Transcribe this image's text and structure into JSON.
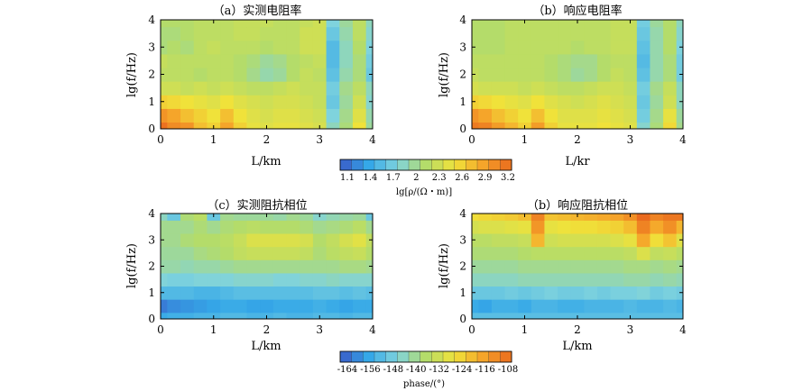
{
  "chart_data": [
    {
      "type": "heatmap",
      "title": "（a）实测电阻率",
      "xlabel": "L/km",
      "ylabel": "lg(f/Hz)",
      "xlim": [
        0,
        4
      ],
      "ylim": [
        0,
        4
      ],
      "xticks": [
        "0",
        "1",
        "2",
        "3",
        "4"
      ],
      "yticks": [
        "0",
        "1",
        "2",
        "3",
        "4"
      ],
      "colorbar_group": "resistivity",
      "rows_lgf": [
        0,
        0.5,
        1,
        1.5,
        2,
        2.5,
        3,
        3.5,
        4
      ],
      "cols_km": [
        0,
        0.25,
        0.5,
        0.75,
        1,
        1.25,
        1.5,
        1.75,
        2,
        2.25,
        2.5,
        2.75,
        3,
        3.25,
        3.5,
        3.75,
        4
      ],
      "values": [
        [
          3.15,
          3.0,
          2.95,
          2.7,
          2.6,
          2.85,
          2.6,
          2.45,
          2.4,
          2.45,
          2.45,
          2.4,
          2.35,
          1.9,
          2.1,
          2.5,
          2.0
        ],
        [
          2.95,
          2.85,
          2.7,
          2.6,
          2.5,
          2.7,
          2.5,
          2.4,
          2.35,
          2.4,
          2.4,
          2.35,
          2.3,
          1.8,
          2.05,
          2.4,
          1.95
        ],
        [
          2.6,
          2.55,
          2.5,
          2.45,
          2.4,
          2.5,
          2.4,
          2.35,
          2.3,
          2.35,
          2.35,
          2.3,
          2.25,
          1.7,
          2.0,
          2.3,
          1.85
        ],
        [
          2.3,
          2.3,
          2.25,
          2.3,
          2.25,
          2.3,
          2.25,
          2.2,
          2.2,
          2.25,
          2.3,
          2.25,
          2.25,
          1.75,
          2.05,
          2.2,
          1.9
        ],
        [
          2.2,
          2.2,
          2.2,
          2.15,
          2.2,
          2.2,
          2.15,
          2.05,
          1.95,
          2.0,
          2.15,
          2.25,
          2.2,
          1.65,
          1.95,
          2.1,
          1.7
        ],
        [
          2.25,
          2.2,
          2.2,
          2.2,
          2.2,
          2.2,
          2.15,
          2.1,
          2.0,
          2.05,
          2.15,
          2.2,
          2.25,
          1.6,
          1.9,
          2.1,
          1.75
        ],
        [
          2.1,
          2.15,
          2.1,
          2.2,
          2.25,
          2.2,
          2.2,
          2.2,
          2.15,
          2.2,
          2.2,
          2.3,
          2.3,
          1.6,
          1.9,
          2.15,
          1.8
        ],
        [
          2.1,
          2.1,
          2.15,
          2.2,
          2.2,
          2.2,
          2.25,
          2.25,
          2.2,
          2.2,
          2.2,
          2.3,
          2.3,
          1.7,
          1.95,
          2.2,
          1.85
        ],
        [
          2.15,
          2.15,
          2.15,
          2.2,
          2.2,
          2.2,
          2.25,
          2.25,
          2.25,
          2.2,
          2.2,
          2.25,
          2.3,
          1.8,
          2.0,
          2.2,
          1.9
        ]
      ]
    },
    {
      "type": "heatmap",
      "title": "（b）响应电阻率",
      "xlabel": "L/kr",
      "ylabel": "lg(f/Hz)",
      "xlim": [
        0,
        4
      ],
      "ylim": [
        0,
        4
      ],
      "xticks": [
        "0",
        "1",
        "2",
        "3",
        "4"
      ],
      "yticks": [
        "0",
        "1",
        "2",
        "3",
        "4"
      ],
      "colorbar_group": "resistivity",
      "rows_lgf": [
        0,
        0.5,
        1,
        1.5,
        2,
        2.5,
        3,
        3.5,
        4
      ],
      "cols_km": [
        0,
        0.25,
        0.5,
        0.75,
        1,
        1.25,
        1.5,
        1.75,
        2,
        2.25,
        2.5,
        2.75,
        3,
        3.25,
        3.5,
        3.75,
        4
      ],
      "values": [
        [
          3.1,
          3.05,
          2.9,
          2.75,
          2.6,
          2.9,
          2.6,
          2.45,
          2.45,
          2.45,
          2.5,
          2.45,
          2.4,
          1.85,
          2.1,
          2.55,
          2.05
        ],
        [
          2.95,
          2.85,
          2.7,
          2.6,
          2.5,
          2.7,
          2.5,
          2.4,
          2.4,
          2.4,
          2.45,
          2.4,
          2.35,
          1.75,
          2.05,
          2.45,
          2.0
        ],
        [
          2.6,
          2.55,
          2.5,
          2.45,
          2.4,
          2.5,
          2.4,
          2.35,
          2.3,
          2.35,
          2.4,
          2.35,
          2.3,
          1.7,
          2.0,
          2.3,
          1.9
        ],
        [
          2.35,
          2.3,
          2.3,
          2.3,
          2.25,
          2.3,
          2.25,
          2.2,
          2.2,
          2.25,
          2.3,
          2.3,
          2.25,
          1.75,
          2.05,
          2.25,
          1.9
        ],
        [
          2.25,
          2.2,
          2.2,
          2.2,
          2.2,
          2.2,
          2.15,
          2.1,
          2.0,
          2.05,
          2.15,
          2.25,
          2.2,
          1.65,
          1.95,
          2.1,
          1.75
        ],
        [
          2.2,
          2.2,
          2.2,
          2.2,
          2.2,
          2.2,
          2.15,
          2.1,
          2.05,
          2.05,
          2.15,
          2.2,
          2.2,
          1.6,
          1.95,
          2.1,
          1.75
        ],
        [
          2.15,
          2.15,
          2.15,
          2.2,
          2.2,
          2.2,
          2.2,
          2.2,
          2.15,
          2.2,
          2.2,
          2.25,
          2.25,
          1.65,
          1.95,
          2.15,
          1.8
        ],
        [
          2.15,
          2.15,
          2.15,
          2.2,
          2.2,
          2.2,
          2.2,
          2.2,
          2.2,
          2.2,
          2.2,
          2.25,
          2.25,
          1.7,
          1.95,
          2.15,
          1.85
        ],
        [
          2.15,
          2.15,
          2.15,
          2.2,
          2.2,
          2.2,
          2.2,
          2.2,
          2.2,
          2.2,
          2.2,
          2.25,
          2.25,
          1.75,
          2.0,
          2.15,
          1.9
        ]
      ]
    },
    {
      "type": "heatmap",
      "title": "（c）实测阻抗相位",
      "xlabel": "L/km",
      "ylabel": "lg(f/Hz)",
      "xlim": [
        0,
        4
      ],
      "ylim": [
        0,
        4
      ],
      "xticks": [
        "0",
        "1",
        "2",
        "3",
        "4"
      ],
      "yticks": [
        "0",
        "1",
        "2",
        "3",
        "4"
      ],
      "colorbar_group": "phase",
      "rows_lgf": [
        0,
        0.5,
        1,
        1.5,
        2,
        2.5,
        3,
        3.5,
        4
      ],
      "cols_km": [
        0,
        0.25,
        0.5,
        0.75,
        1,
        1.25,
        1.5,
        1.75,
        2,
        2.25,
        2.5,
        2.75,
        3,
        3.25,
        3.5,
        3.75,
        4
      ],
      "values": [
        [
          -154,
          -153,
          -153,
          -152,
          -152,
          -151,
          -151,
          -152,
          -152,
          -151,
          -152,
          -152,
          -151,
          -151,
          -152,
          -151,
          -151
        ],
        [
          -160,
          -158,
          -157,
          -156,
          -155,
          -154,
          -154,
          -155,
          -155,
          -154,
          -154,
          -154,
          -153,
          -154,
          -155,
          -154,
          -154
        ],
        [
          -151,
          -151,
          -151,
          -152,
          -152,
          -151,
          -150,
          -150,
          -150,
          -150,
          -150,
          -150,
          -149,
          -149,
          -150,
          -149,
          -150
        ],
        [
          -145,
          -146,
          -146,
          -145,
          -145,
          -145,
          -144,
          -144,
          -144,
          -145,
          -145,
          -144,
          -144,
          -143,
          -144,
          -144,
          -144
        ],
        [
          -141,
          -141,
          -142,
          -141,
          -141,
          -140,
          -139,
          -139,
          -139,
          -139,
          -139,
          -139,
          -139,
          -139,
          -138,
          -138,
          -139
        ],
        [
          -140,
          -140,
          -140,
          -138,
          -137,
          -136,
          -134,
          -133,
          -133,
          -133,
          -133,
          -134,
          -137,
          -135,
          -134,
          -133,
          -136
        ],
        [
          -139,
          -139,
          -137,
          -136,
          -136,
          -135,
          -133,
          -130,
          -130,
          -130,
          -130,
          -131,
          -136,
          -134,
          -131,
          -129,
          -134
        ],
        [
          -139,
          -139,
          -139,
          -137,
          -139,
          -137,
          -136,
          -135,
          -136,
          -136,
          -136,
          -137,
          -139,
          -138,
          -137,
          -135,
          -139
        ],
        [
          -143,
          -148,
          -137,
          -135,
          -148,
          -139,
          -140,
          -140,
          -140,
          -141,
          -139,
          -140,
          -144,
          -142,
          -141,
          -140,
          -148
        ]
      ]
    },
    {
      "type": "heatmap",
      "title": "（b）响应阻抗相位",
      "xlabel": "L/km",
      "ylabel": "lg(f/Hz)",
      "xlim": [
        0,
        4
      ],
      "ylim": [
        0,
        4
      ],
      "xticks": [
        "0",
        "1",
        "2",
        "3",
        "4"
      ],
      "yticks": [
        "0",
        "1",
        "2",
        "3",
        "4"
      ],
      "colorbar_group": "phase",
      "rows_lgf": [
        0,
        0.5,
        1,
        1.5,
        2,
        2.5,
        3,
        3.5,
        4
      ],
      "cols_km": [
        0,
        0.25,
        0.5,
        0.75,
        1,
        1.25,
        1.5,
        1.75,
        2,
        2.25,
        2.5,
        2.75,
        3,
        3.25,
        3.5,
        3.75,
        4
      ],
      "values": [
        [
          -150,
          -150,
          -150,
          -150,
          -150,
          -150,
          -150,
          -150,
          -150,
          -150,
          -150,
          -150,
          -150,
          -150,
          -150,
          -150,
          -150
        ],
        [
          -154,
          -155,
          -153,
          -153,
          -154,
          -152,
          -152,
          -153,
          -153,
          -152,
          -152,
          -152,
          -151,
          -152,
          -152,
          -151,
          -152
        ],
        [
          -148,
          -148,
          -148,
          -147,
          -148,
          -147,
          -146,
          -147,
          -147,
          -146,
          -147,
          -146,
          -146,
          -145,
          -147,
          -146,
          -147
        ],
        [
          -143,
          -143,
          -143,
          -143,
          -142,
          -142,
          -142,
          -142,
          -142,
          -142,
          -142,
          -142,
          -141,
          -141,
          -142,
          -141,
          -142
        ],
        [
          -140,
          -140,
          -140,
          -140,
          -139,
          -139,
          -139,
          -139,
          -139,
          -139,
          -139,
          -139,
          -138,
          -138,
          -139,
          -138,
          -139
        ],
        [
          -137,
          -137,
          -137,
          -137,
          -136,
          -135,
          -135,
          -135,
          -135,
          -135,
          -135,
          -135,
          -134,
          -130,
          -134,
          -133,
          -135
        ],
        [
          -135,
          -135,
          -134,
          -134,
          -133,
          -120,
          -132,
          -131,
          -131,
          -131,
          -131,
          -130,
          -128,
          -118,
          -126,
          -122,
          -129
        ],
        [
          -131,
          -130,
          -130,
          -129,
          -128,
          -115,
          -128,
          -127,
          -126,
          -126,
          -125,
          -124,
          -121,
          -112,
          -118,
          -114,
          -120
        ],
        [
          -126,
          -125,
          -124,
          -123,
          -121,
          -112,
          -122,
          -121,
          -120,
          -119,
          -118,
          -117,
          -114,
          -108,
          -112,
          -110,
          -110
        ]
      ]
    }
  ],
  "colorbars": {
    "resistivity": {
      "ticks": [
        "1.1",
        "1.4",
        "1.7",
        "2",
        "2.3",
        "2.6",
        "2.9",
        "3.2"
      ],
      "vmin": 1.1,
      "vmax": 3.2,
      "label": "lg[ρ/(Ω・m)]"
    },
    "phase": {
      "ticks": [
        "-164",
        "-156",
        "-148",
        "-140",
        "-132",
        "-124",
        "-116",
        "-108"
      ],
      "vmin": -164,
      "vmax": -108,
      "label": "phase/(°)"
    }
  },
  "palette": [
    "#3a5bc8",
    "#35a8e8",
    "#7fd3dd",
    "#b4dc6a",
    "#f0e23a",
    "#f5a52a",
    "#ea6a1e"
  ]
}
